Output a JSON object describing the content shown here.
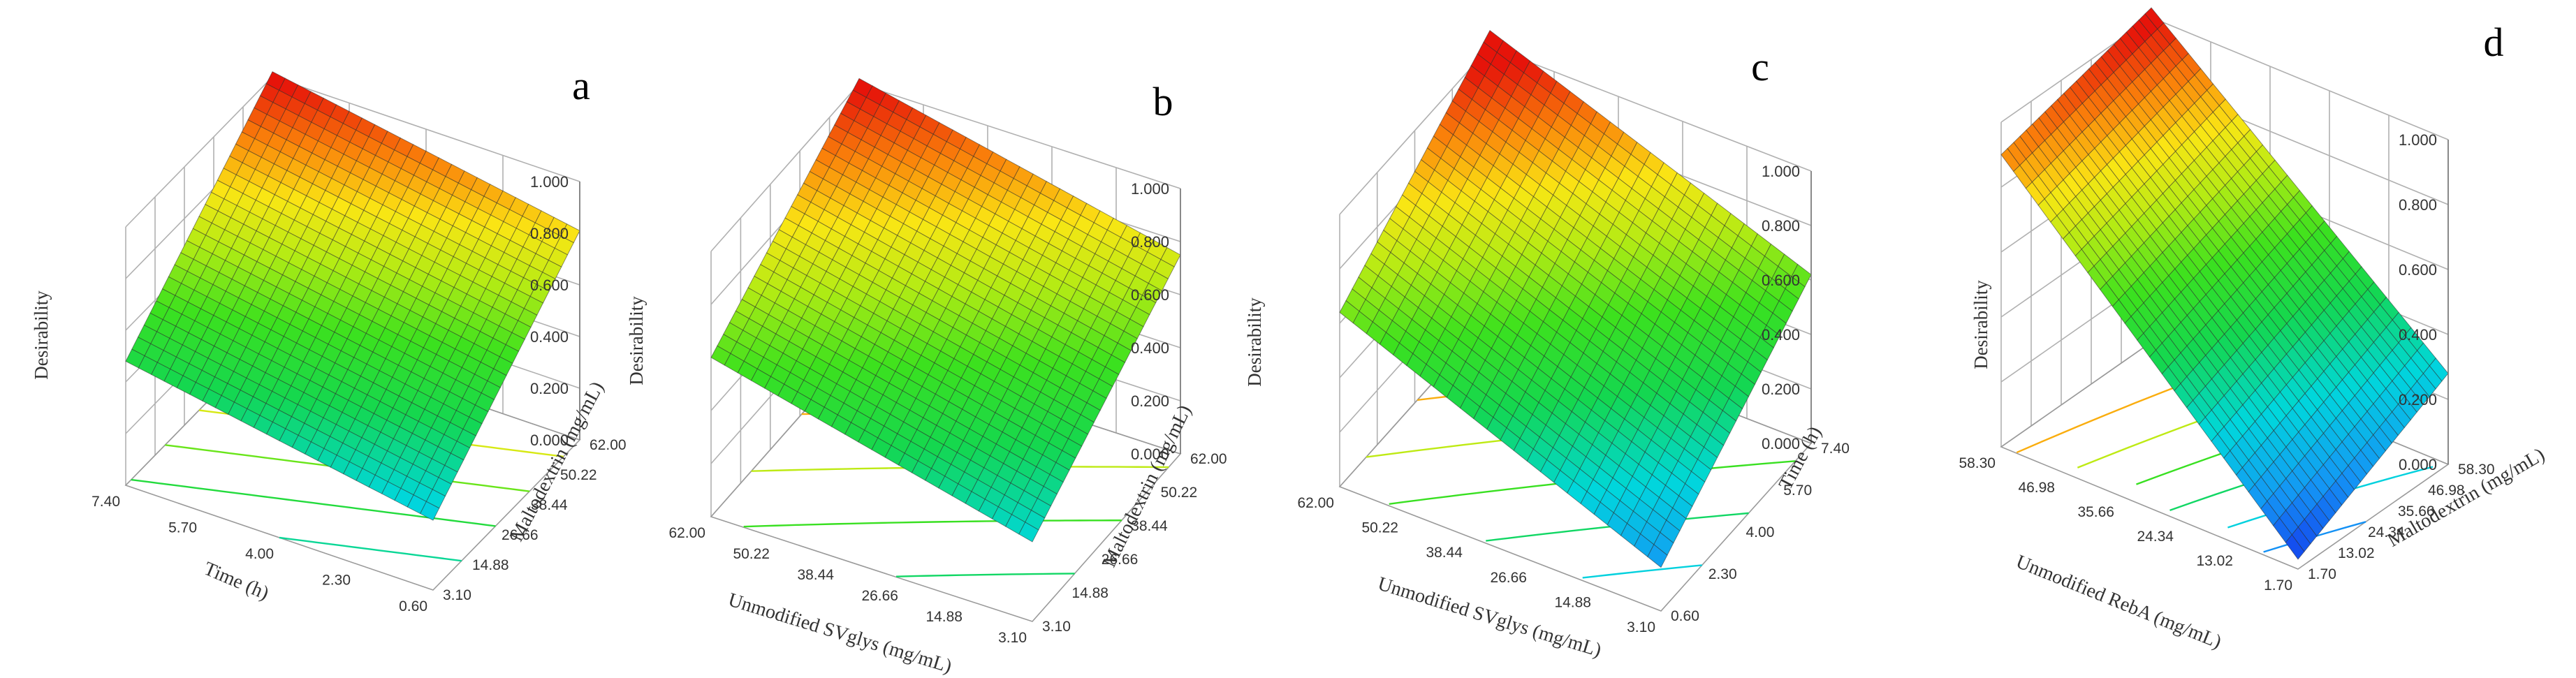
{
  "chart_data": [
    {
      "type": "surface3d",
      "panel_label": "a",
      "zlabel": "Desirability",
      "xlabel": "Time (h)",
      "ylabel": "Maltodextrin (mg/mL)",
      "x_ticks": [
        "7.40",
        "5.70",
        "4.00",
        "2.30",
        "0.60"
      ],
      "y_ticks": [
        "3.10",
        "14.88",
        "26.66",
        "38.44",
        "50.22",
        "62.00"
      ],
      "z_ticks": [
        "0.000",
        "0.200",
        "0.400",
        "0.600",
        "0.800",
        "1.000"
      ],
      "xlim": [
        0.6,
        7.4
      ],
      "ylim": [
        3.1,
        62.0
      ],
      "zlim": [
        0,
        1
      ],
      "corner_values": {
        "x_min_y_min": 0.27,
        "x_max_y_min": 0.48,
        "x_min_y_max": 0.81,
        "x_max_y_max": 1.02
      },
      "contour_count": 7
    },
    {
      "type": "surface3d",
      "panel_label": "b",
      "zlabel": "Desirability",
      "xlabel": "Unmodified SVglys (mg/mL)",
      "ylabel": "Maltodextrin (mg/mL)",
      "x_ticks": [
        "62.00",
        "50.22",
        "38.44",
        "26.66",
        "14.88",
        "3.10"
      ],
      "y_ticks": [
        "3.10",
        "14.88",
        "26.66",
        "38.44",
        "50.22",
        "62.00"
      ],
      "z_ticks": [
        "0.000",
        "0.200",
        "0.400",
        "0.600",
        "0.800",
        "1.000"
      ],
      "xlim": [
        3.1,
        62.0
      ],
      "ylim": [
        3.1,
        62.0
      ],
      "zlim": [
        0,
        1
      ],
      "corner_values": {
        "x_min_y_min": 0.3,
        "x_max_y_min": 0.6,
        "x_min_y_max": 0.75,
        "x_max_y_max": 1.02
      },
      "contour_count": 6
    },
    {
      "type": "surface3d",
      "panel_label": "c",
      "zlabel": "Desirability",
      "xlabel": "Unmodified SVglys (mg/mL)",
      "ylabel": "Time (h)",
      "x_ticks": [
        "62.00",
        "50.22",
        "38.44",
        "26.66",
        "14.88",
        "3.10"
      ],
      "y_ticks": [
        "0.60",
        "2.30",
        "4.00",
        "5.70",
        "7.40"
      ],
      "z_ticks": [
        "0.000",
        "0.200",
        "0.400",
        "0.600",
        "0.800",
        "1.000"
      ],
      "xlim": [
        3.1,
        62.0
      ],
      "ylim": [
        0.6,
        7.4
      ],
      "zlim": [
        0,
        1
      ],
      "corner_values": {
        "x_min_y_min": 0.16,
        "x_max_y_min": 0.64,
        "x_min_y_max": 0.62,
        "x_max_y_max": 1.06
      },
      "contour_count": 6
    },
    {
      "type": "surface3d",
      "panel_label": "d",
      "zlabel": "Desirability",
      "xlabel": "Unmodified RebA (mg/mL)",
      "ylabel": "Maltodextrin (mg/mL)",
      "x_ticks": [
        "58.30",
        "46.98",
        "35.66",
        "24.34",
        "13.02",
        "1.70"
      ],
      "y_ticks": [
        "1.70",
        "13.02",
        "24.34",
        "35.66",
        "46.98",
        "58.30"
      ],
      "z_ticks": [
        "0.000",
        "0.200",
        "0.400",
        "0.600",
        "0.800",
        "1.000"
      ],
      "xlim": [
        1.7,
        58.3
      ],
      "ylim": [
        1.7,
        58.3
      ],
      "zlim": [
        0,
        1
      ],
      "corner_values": {
        "x_min_y_min": 0.03,
        "x_max_y_min": 0.9,
        "x_min_y_max": 0.28,
        "x_max_y_max": 1.03
      },
      "contour_count": 6
    }
  ]
}
